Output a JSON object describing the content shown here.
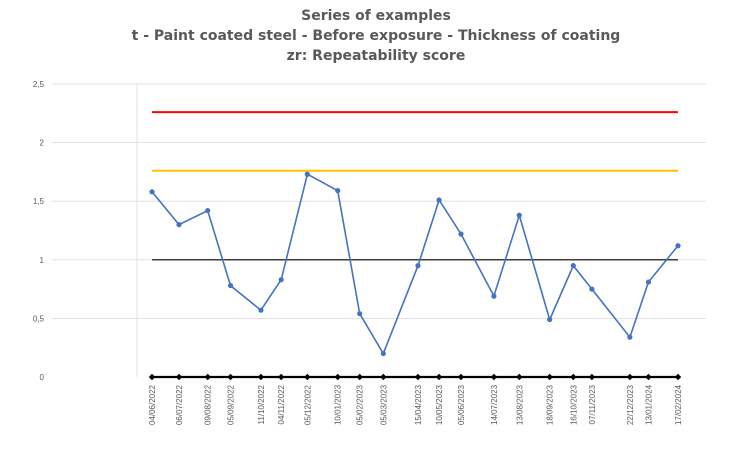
{
  "chart_data": {
    "type": "line",
    "title_lines": [
      "Series of examples",
      "t - Paint coated steel - Before exposure - Thickness of coating",
      "zr: Repeatability score"
    ],
    "ylim": [
      0,
      2.5
    ],
    "y_ticks": [
      "0",
      "0,5",
      "1",
      "1,5",
      "2",
      "2,5"
    ],
    "y_tick_values": [
      0,
      0.5,
      1,
      1.5,
      2,
      2.5
    ],
    "grid": "horizontal",
    "x": [
      "04/06/2022",
      "06/07/2022",
      "09/08/2022",
      "05/09/2022",
      "11/10/2022",
      "04/11/2022",
      "05/12/2022",
      "10/01/2023",
      "05/02/2023",
      "05/03/2023",
      "15/04/2023",
      "10/05/2023",
      "05/06/2023",
      "14/07/2023",
      "13/08/2023",
      "18/09/2023",
      "16/10/2023",
      "07/11/2023",
      "22/12/2023",
      "13/01/2024",
      "17/02/2024"
    ],
    "series": [
      {
        "values": [
          1.58,
          1.3,
          1.42,
          0.78,
          0.57,
          0.83,
          1.73,
          1.59,
          0.54,
          0.2,
          0.95,
          1.51,
          1.22,
          0.69,
          1.38,
          0.49,
          0.95,
          0.75,
          0.34,
          0.81,
          1.12
        ],
        "color": "#4472c4",
        "marker": "circle"
      },
      {
        "values": [
          0,
          0,
          0,
          0,
          0,
          0,
          0,
          0,
          0,
          0,
          0,
          0,
          0,
          0,
          0,
          0,
          0,
          0,
          0,
          0,
          0
        ],
        "color": "#000000",
        "marker": "diamond"
      }
    ],
    "reference_lines": [
      {
        "value": 2.26,
        "color": "#ff0000"
      },
      {
        "value": 1.76,
        "color": "#ffc000"
      },
      {
        "value": 1.0,
        "color": "#000000"
      }
    ],
    "colors": {
      "axis_text": "#595959",
      "gridline": "#d9d9d9"
    }
  }
}
